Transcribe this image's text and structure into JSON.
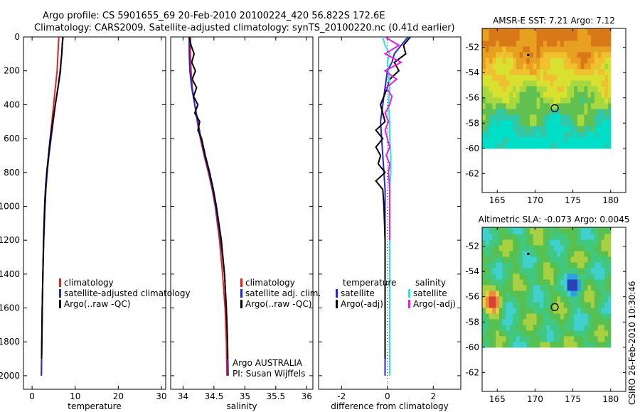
{
  "title": {
    "line1": "Argo profile: CS 5901655_69 20-Feb-2010 20100224_420 56.822S 172.6E",
    "line2": "Climatology: CARS2009. Satellite-adjusted climatology: synTS_20100220.nc (0.41d earlier)"
  },
  "side_label": "CSIRO 26-Feb-2010 10:30:46",
  "colors": {
    "climatology": "#e8201c",
    "satellite": "#2326d6",
    "argo": "#000000",
    "satellite_salinity": "#1ee6ea",
    "argo_salinity": "#e81ee8"
  },
  "chart_data": [
    {
      "type": "line",
      "id": "temperature",
      "xlabel": "temperature",
      "ylabel": "",
      "xlim": [
        -2,
        31
      ],
      "ylim": [
        0,
        2080
      ],
      "y_inverted": true,
      "xticks": [
        "0",
        "10",
        "20",
        "30"
      ],
      "yticks": [
        "0",
        "200",
        "400",
        "600",
        "800",
        "1000",
        "1200",
        "1400",
        "1600",
        "1800",
        "2000"
      ],
      "legend": [
        "climatology",
        "satellite-adjusted climatology",
        "Argo(..raw -QC)"
      ],
      "series": [
        {
          "name": "climatology",
          "color": "#e8201c",
          "y": [
            0,
            50,
            100,
            200,
            300,
            400,
            500,
            600,
            700,
            800,
            900,
            1000,
            1200,
            1400,
            1600,
            1800,
            2000
          ],
          "x": [
            6.2,
            6.1,
            6.0,
            5.8,
            5.4,
            5.0,
            4.6,
            4.2,
            3.8,
            3.5,
            3.2,
            3.0,
            2.7,
            2.5,
            2.35,
            2.25,
            2.15
          ]
        },
        {
          "name": "satellite-adjusted climatology",
          "color": "#2326d6",
          "y": [
            0,
            50,
            100,
            200,
            300,
            400,
            500,
            600,
            700,
            800,
            900,
            1000,
            1200,
            1400,
            1600,
            1800,
            2000
          ],
          "x": [
            7.2,
            7.0,
            6.9,
            6.5,
            6.0,
            5.4,
            4.9,
            4.4,
            3.9,
            3.5,
            3.2,
            3.0,
            2.7,
            2.5,
            2.35,
            2.25,
            2.15
          ]
        },
        {
          "name": "Argo(..raw -QC)",
          "color": "#000000",
          "y": [
            0,
            50,
            100,
            150,
            200,
            300,
            400,
            500,
            600,
            700,
            800,
            900,
            1000,
            1200,
            1400,
            1600,
            1800,
            1900
          ],
          "x": [
            7.1,
            7.0,
            6.9,
            6.7,
            6.6,
            6.0,
            5.4,
            4.8,
            4.2,
            3.8,
            3.4,
            3.1,
            2.9,
            2.65,
            2.5,
            2.35,
            2.25,
            2.2
          ]
        }
      ]
    },
    {
      "type": "line",
      "id": "salinity",
      "xlabel": "salinity",
      "ylabel": "",
      "xlim": [
        33.8,
        36.1
      ],
      "ylim": [
        0,
        2080
      ],
      "y_inverted": true,
      "xticks": [
        "34",
        "34.5",
        "35",
        "35.5",
        "36"
      ],
      "legend": [
        "climatology",
        "satellite adj. clim.",
        "Argo(..raw -QC)"
      ],
      "annotation": [
        "Argo AUSTRALIA",
        "PI: Susan Wijffels"
      ],
      "series": [
        {
          "name": "climatology",
          "color": "#e8201c",
          "y": [
            0,
            100,
            200,
            300,
            400,
            500,
            600,
            700,
            800,
            900,
            1000,
            1200,
            1400,
            1600,
            1800,
            2000
          ],
          "x": [
            34.12,
            34.12,
            34.13,
            34.15,
            34.19,
            34.23,
            34.28,
            34.34,
            34.41,
            34.47,
            34.52,
            34.59,
            34.64,
            34.68,
            34.7,
            34.71
          ]
        },
        {
          "name": "satellite adj. clim.",
          "color": "#2326d6",
          "y": [
            0,
            100,
            200,
            300,
            400,
            500,
            600,
            700,
            800,
            900,
            1000,
            1200,
            1400,
            1600,
            1800,
            2000
          ],
          "x": [
            34.1,
            34.1,
            34.11,
            34.14,
            34.19,
            34.24,
            34.29,
            34.35,
            34.42,
            34.48,
            34.53,
            34.61,
            34.67,
            34.7,
            34.72,
            34.73
          ]
        },
        {
          "name": "Argo(..raw -QC)",
          "color": "#000000",
          "y": [
            0,
            50,
            100,
            150,
            200,
            250,
            300,
            350,
            400,
            450,
            500,
            550,
            600,
            700,
            800,
            900,
            1000,
            1200,
            1400,
            1600,
            1800,
            1900
          ],
          "x": [
            34.1,
            34.13,
            34.18,
            34.14,
            34.2,
            34.15,
            34.22,
            34.17,
            34.24,
            34.19,
            34.27,
            34.24,
            34.3,
            34.36,
            34.43,
            34.49,
            34.54,
            34.62,
            34.67,
            34.7,
            34.72,
            34.72
          ]
        }
      ]
    },
    {
      "type": "line",
      "id": "difference",
      "xlabel": "difference from climatology",
      "ylabel": "",
      "xlim": [
        -3,
        3.2
      ],
      "ylim": [
        0,
        2080
      ],
      "y_inverted": true,
      "xticks": [
        "-2",
        "0",
        "2"
      ],
      "legend_groups": [
        {
          "heading": "temperature",
          "entries": [
            "satellite",
            "Argo(-adj)"
          ]
        },
        {
          "heading": "salinity",
          "entries": [
            "satellite",
            "Argo(-adj)"
          ]
        }
      ],
      "series": [
        {
          "name": "temperature satellite",
          "color": "#2326d6",
          "y": [
            0,
            50,
            100,
            150,
            200,
            300,
            400,
            500,
            600,
            700,
            800,
            900,
            1000,
            1200,
            1400,
            1600,
            1800,
            2000
          ],
          "x": [
            0.9,
            0.6,
            0.3,
            0.2,
            0.0,
            -0.1,
            -0.2,
            -0.3,
            -0.25,
            -0.2,
            -0.15,
            -0.1,
            -0.1,
            -0.1,
            -0.1,
            -0.1,
            -0.1,
            -0.1
          ]
        },
        {
          "name": "temperature Argo(-adj)",
          "color": "#000000",
          "y": [
            0,
            50,
            100,
            150,
            200,
            250,
            300,
            400,
            500,
            550,
            600,
            650,
            700,
            750,
            800,
            850,
            900,
            1000,
            1200,
            1400,
            1600,
            1800,
            1900
          ],
          "x": [
            1.0,
            0.7,
            0.8,
            0.3,
            0.5,
            0.1,
            0.0,
            -0.3,
            -0.1,
            -0.5,
            -0.2,
            -0.5,
            -0.3,
            -0.4,
            -0.1,
            -0.5,
            -0.2,
            -0.15,
            -0.1,
            -0.1,
            -0.1,
            -0.1,
            -0.1
          ]
        },
        {
          "name": "salinity satellite",
          "color": "#1ee6ea",
          "y": [
            0,
            50,
            100,
            150,
            200,
            300,
            400,
            500,
            600,
            700,
            800,
            900,
            1000,
            1200,
            1400,
            1600,
            1800,
            2000
          ],
          "x": [
            -0.2,
            -0.1,
            0.1,
            0.0,
            0.05,
            0.1,
            0.05,
            0.1,
            0.1,
            0.15,
            0.15,
            0.1,
            0.1,
            0.1,
            0.1,
            0.1,
            0.1,
            0.1
          ]
        },
        {
          "name": "salinity Argo(-adj)",
          "color": "#e81ee8",
          "y": [
            0,
            50,
            100,
            150,
            200,
            250,
            300,
            350,
            400,
            450,
            500,
            550,
            600,
            650,
            700,
            750,
            800,
            900,
            1000,
            1200
          ],
          "x": [
            -0.1,
            0.5,
            -0.1,
            0.6,
            -0.1,
            0.4,
            -0.05,
            0.2,
            0.1,
            -0.1,
            0.05,
            -0.1,
            0.0,
            0.1,
            -0.05,
            0.1,
            0.05,
            0.1,
            0.1,
            0.1
          ]
        }
      ]
    },
    {
      "type": "heatmap",
      "id": "sst_map",
      "title": "AMSR-E SST: 7.21 Argo: 7.12",
      "xlim": [
        163,
        182
      ],
      "ylim": [
        -63.5,
        -50.5
      ],
      "xticks": [
        "165",
        "170",
        "175",
        "180"
      ],
      "yticks": [
        "-52",
        "-54",
        "-56",
        "-58",
        "-60",
        "-62"
      ],
      "data_extent": {
        "lon": [
          163,
          180
        ],
        "lat": [
          -60,
          -50.5
        ]
      },
      "argo_position": {
        "lon": 172.6,
        "lat": -56.822
      },
      "previous_position": {
        "lon": 169.1,
        "lat": -52.6
      },
      "colormap": [
        "#00e0c8",
        "#30c8a8",
        "#60c050",
        "#a8d840",
        "#d8e030",
        "#f0c030",
        "#e8a020",
        "#d87818"
      ]
    },
    {
      "type": "heatmap",
      "id": "sla_map",
      "title": "Altimetric SLA: -0.073 Argo: 0.0045",
      "xlim": [
        163,
        182
      ],
      "ylim": [
        -63.5,
        -50.5
      ],
      "xticks": [
        "165",
        "170",
        "175",
        "180"
      ],
      "yticks": [
        "-52",
        "-54",
        "-56",
        "-58",
        "-60",
        "-62"
      ],
      "data_extent": {
        "lon": [
          163,
          180
        ],
        "lat": [
          -60,
          -50.5
        ]
      },
      "argo_position": {
        "lon": 172.6,
        "lat": -56.822
      },
      "previous_position": {
        "lon": 169.1,
        "lat": -52.6
      },
      "colormap": [
        "#2a40b8",
        "#30a0e0",
        "#40d0d0",
        "#40c880",
        "#58c050",
        "#a8d040",
        "#e8d040",
        "#e89040",
        "#d84030"
      ]
    }
  ]
}
